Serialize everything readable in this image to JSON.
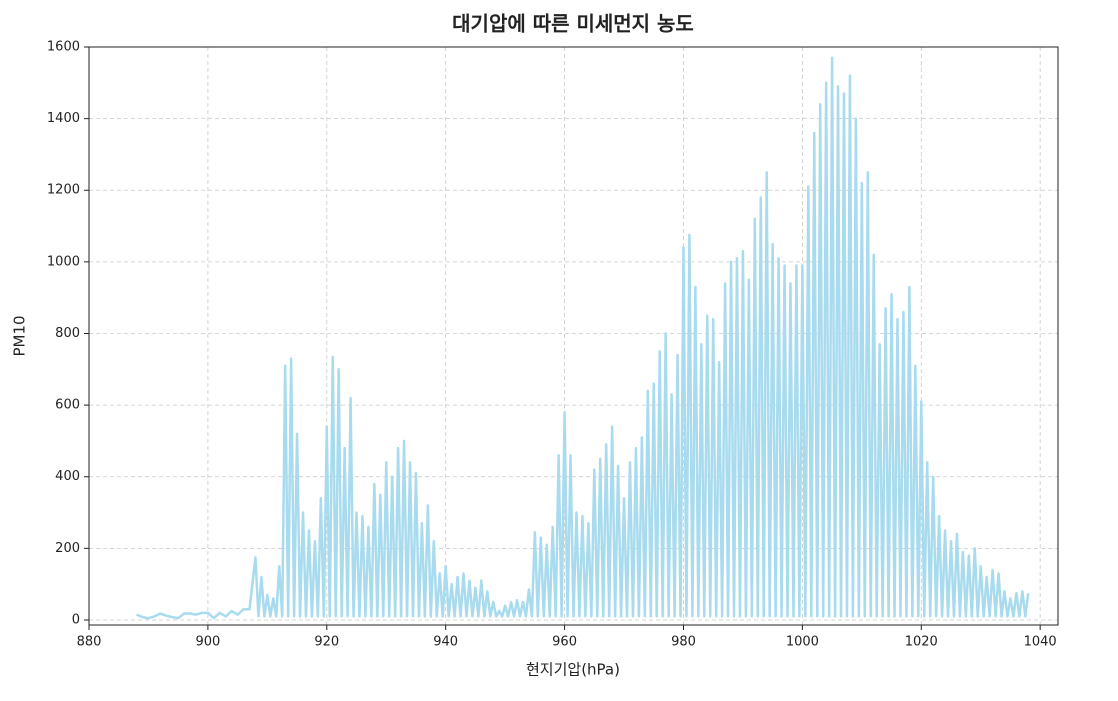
{
  "chart_data": {
    "type": "line",
    "title": "대기압에 따른 미세먼지 농도",
    "xlabel": "현지기압(hPa)",
    "ylabel": "PM10",
    "xlim": [
      880,
      1043
    ],
    "ylim": [
      -14,
      1600
    ],
    "xticks": [
      880,
      900,
      920,
      940,
      960,
      980,
      1000,
      1020,
      1040
    ],
    "yticks": [
      0,
      200,
      400,
      600,
      800,
      1000,
      1200,
      1400,
      1600
    ],
    "grid": true,
    "x": [
      888,
      889,
      890,
      891,
      892,
      893,
      894,
      895,
      896,
      897,
      898,
      899,
      900,
      901,
      902,
      903,
      904,
      905,
      906,
      907,
      908,
      908.5,
      909,
      909.5,
      910,
      910.5,
      911,
      911.5,
      912,
      912.5,
      913,
      913.5,
      914,
      914.5,
      915,
      915.5,
      916,
      916.5,
      917,
      917.5,
      918,
      918.5,
      919,
      919.5,
      920,
      920.5,
      921,
      921.5,
      922,
      922.5,
      923,
      923.5,
      924,
      924.5,
      925,
      925.5,
      926,
      926.5,
      927,
      927.5,
      928,
      928.5,
      929,
      929.5,
      930,
      930.5,
      931,
      931.5,
      932,
      932.5,
      933,
      933.5,
      934,
      934.5,
      935,
      935.5,
      936,
      936.5,
      937,
      937.5,
      938,
      938.5,
      939,
      939.5,
      940,
      940.5,
      941,
      941.5,
      942,
      942.5,
      943,
      943.5,
      944,
      944.5,
      945,
      945.5,
      946,
      946.5,
      947,
      947.5,
      948,
      948.5,
      949,
      949.5,
      950,
      950.5,
      951,
      951.5,
      952,
      952.5,
      953,
      953.5,
      954,
      954.5,
      955,
      955.5,
      956,
      956.5,
      957,
      957.5,
      958,
      958.5,
      959,
      959.5,
      960,
      960.5,
      961,
      961.5,
      962,
      962.5,
      963,
      963.5,
      964,
      964.5,
      965,
      965.5,
      966,
      966.5,
      967,
      967.5,
      968,
      968.5,
      969,
      969.5,
      970,
      970.5,
      971,
      971.5,
      972,
      972.5,
      973,
      973.5,
      974,
      974.5,
      975,
      975.5,
      976,
      976.5,
      977,
      977.5,
      978,
      978.5,
      979,
      979.5,
      980,
      980.5,
      981,
      981.5,
      982,
      982.5,
      983,
      983.5,
      984,
      984.5,
      985,
      985.5,
      986,
      986.5,
      987,
      987.5,
      988,
      988.5,
      989,
      989.5,
      990,
      990.5,
      991,
      991.5,
      992,
      992.5,
      993,
      993.5,
      994,
      994.5,
      995,
      995.5,
      996,
      996.5,
      997,
      997.5,
      998,
      998.5,
      999,
      999.5,
      1000,
      1000.5,
      1001,
      1001.5,
      1002,
      1002.5,
      1003,
      1003.5,
      1004,
      1004.5,
      1005,
      1005.5,
      1006,
      1006.5,
      1007,
      1007.5,
      1008,
      1008.5,
      1009,
      1009.5,
      1010,
      1010.5,
      1011,
      1011.5,
      1012,
      1012.5,
      1013,
      1013.5,
      1014,
      1014.5,
      1015,
      1015.5,
      1016,
      1016.5,
      1017,
      1017.5,
      1018,
      1018.5,
      1019,
      1019.5,
      1020,
      1020.5,
      1021,
      1021.5,
      1022,
      1022.5,
      1023,
      1023.5,
      1024,
      1024.5,
      1025,
      1025.5,
      1026,
      1026.5,
      1027,
      1027.5,
      1028,
      1028.5,
      1029,
      1029.5,
      1030,
      1030.5,
      1031,
      1031.5,
      1032,
      1032.5,
      1033,
      1033.5,
      1034,
      1034.5,
      1035,
      1035.5,
      1036,
      1036.5,
      1037,
      1037.5,
      1038
    ],
    "series": [
      {
        "color": "#a8dbee",
        "values": [
          15,
          8,
          5,
          10,
          18,
          12,
          8,
          5,
          18,
          18,
          15,
          20,
          20,
          5,
          20,
          10,
          25,
          15,
          30,
          30,
          175,
          10,
          120,
          10,
          70,
          10,
          60,
          10,
          150,
          10,
          710,
          10,
          730,
          10,
          520,
          10,
          300,
          10,
          250,
          10,
          220,
          10,
          340,
          10,
          540,
          10,
          735,
          10,
          700,
          10,
          480,
          10,
          620,
          10,
          300,
          10,
          290,
          10,
          260,
          10,
          380,
          10,
          350,
          10,
          440,
          10,
          400,
          10,
          480,
          10,
          500,
          10,
          440,
          10,
          410,
          10,
          270,
          10,
          320,
          10,
          220,
          10,
          130,
          10,
          150,
          10,
          100,
          10,
          120,
          10,
          130,
          10,
          110,
          10,
          90,
          10,
          110,
          10,
          80,
          10,
          50,
          10,
          25,
          10,
          40,
          10,
          50,
          10,
          55,
          10,
          50,
          10,
          85,
          10,
          245,
          10,
          230,
          10,
          210,
          10,
          260,
          10,
          460,
          10,
          580,
          10,
          460,
          10,
          300,
          10,
          290,
          10,
          270,
          10,
          420,
          10,
          450,
          10,
          490,
          10,
          540,
          10,
          430,
          10,
          340,
          10,
          440,
          10,
          480,
          10,
          510,
          10,
          640,
          10,
          660,
          10,
          750,
          10,
          800,
          10,
          630,
          10,
          740,
          10,
          1040,
          10,
          1075,
          10,
          930,
          10,
          770,
          10,
          850,
          10,
          840,
          10,
          720,
          10,
          940,
          10,
          1000,
          10,
          1010,
          10,
          1030,
          10,
          950,
          10,
          1120,
          10,
          1180,
          10,
          1250,
          10,
          1050,
          10,
          1010,
          10,
          990,
          10,
          940,
          10,
          990,
          10,
          990,
          10,
          1210,
          10,
          1360,
          10,
          1440,
          10,
          1500,
          10,
          1570,
          10,
          1490,
          10,
          1470,
          10,
          1520,
          10,
          1400,
          10,
          1220,
          10,
          1250,
          10,
          1020,
          10,
          770,
          10,
          870,
          10,
          910,
          10,
          840,
          10,
          860,
          10,
          930,
          10,
          710,
          10,
          610,
          10,
          440,
          10,
          400,
          10,
          290,
          10,
          250,
          10,
          220,
          10,
          240,
          10,
          190,
          10,
          180,
          10,
          200,
          10,
          150,
          10,
          120,
          10,
          140,
          10,
          130,
          10,
          80,
          10,
          60,
          10,
          75,
          10,
          80,
          10,
          75
        ]
      }
    ]
  }
}
